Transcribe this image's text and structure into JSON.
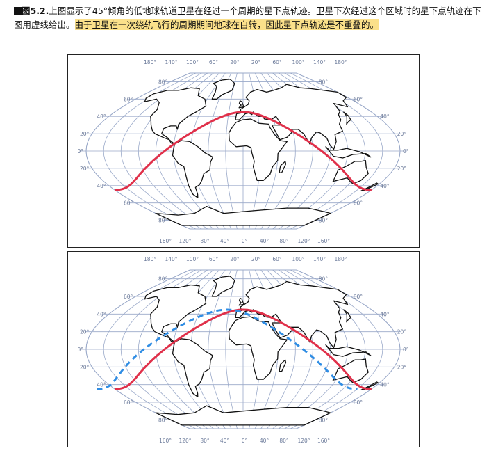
{
  "caption": {
    "label": "图5.2.",
    "text1": "上图显示了45°倾角的低地球轨道卫星在经过一个周期的星下点轨迹。卫星下次经过这个区域时的星下点轨迹在下图用虚线给出。",
    "highlight": "由于卫星在一次绕轨飞行的周期期间地球在自转，因此星下点轨迹是不重叠的。"
  },
  "map": {
    "top_ticks": [
      "180°",
      "140°",
      "100°",
      "60°",
      "20°",
      "20°",
      "60°",
      "100°",
      "140°",
      "180°"
    ],
    "bottom_ticks": [
      "160°",
      "120°",
      "80°",
      "40°",
      "0°",
      "40°",
      "80°",
      "120°",
      "160°"
    ],
    "left_lat": [
      "80°",
      "60°",
      "40°",
      "20°",
      "0°",
      "20°",
      "40°",
      "60°",
      "80°"
    ],
    "right_lat": [
      "80°",
      "60°",
      "40°",
      "20°",
      "0°",
      "20°",
      "40°",
      "60°",
      "80°"
    ]
  },
  "colors": {
    "solid_track": "#e0304a",
    "dashed_track": "#2f8de4",
    "grid": "#9aa9c9",
    "highlight": "#fbe08a"
  },
  "tracks": {
    "inclination_deg": 45,
    "first_pass": {
      "style": "solid",
      "start_lon": -180,
      "end_lon": 180
    },
    "next_pass": {
      "style": "dashed",
      "start_lon": -205,
      "end_lon": 160
    }
  }
}
